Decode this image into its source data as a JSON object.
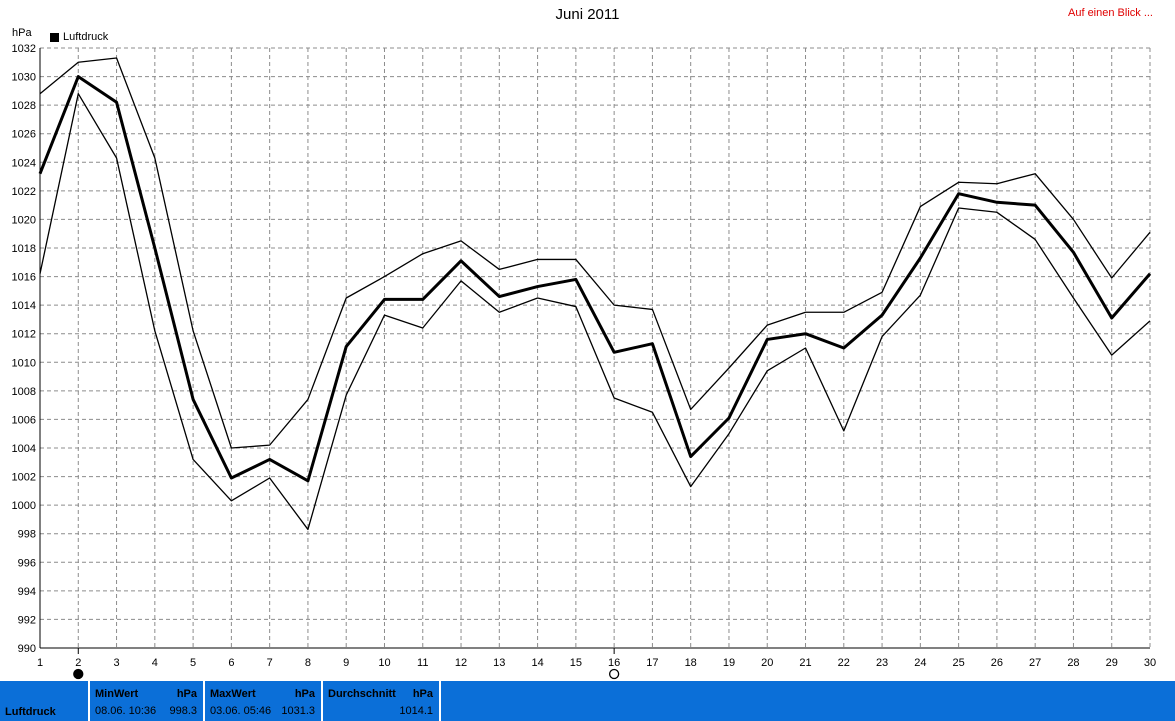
{
  "header": {
    "title": "Juni 2011",
    "overview_link": "Auf einen Blick ..."
  },
  "chart_data": {
    "type": "line",
    "title": "Juni 2011",
    "ylabel": "hPa",
    "xlabel": "",
    "legend": [
      "Luftdruck"
    ],
    "legend_position": "top-left",
    "grid": true,
    "xlim": [
      1,
      30
    ],
    "ylim": [
      990,
      1032
    ],
    "y_ticks": [
      990,
      992,
      994,
      996,
      998,
      1000,
      1002,
      1004,
      1006,
      1008,
      1010,
      1012,
      1014,
      1016,
      1018,
      1020,
      1022,
      1024,
      1026,
      1028,
      1030,
      1032
    ],
    "x": [
      1,
      2,
      3,
      4,
      5,
      6,
      7,
      8,
      9,
      10,
      11,
      12,
      13,
      14,
      15,
      16,
      17,
      18,
      19,
      20,
      21,
      22,
      23,
      24,
      25,
      26,
      27,
      28,
      29,
      30
    ],
    "series": [
      {
        "name": "Luftdruck",
        "role": "max",
        "color": "#000000",
        "values": [
          1028.8,
          1031.0,
          1031.3,
          1024.3,
          1012.2,
          1004.0,
          1004.2,
          1007.4,
          1014.5,
          1016.0,
          1017.6,
          1018.5,
          1016.5,
          1017.2,
          1017.2,
          1014.0,
          1013.7,
          1006.7,
          1009.6,
          1012.6,
          1013.5,
          1013.5,
          1014.9,
          1020.9,
          1022.6,
          1022.5,
          1023.2,
          1020.0,
          1015.9,
          1019.1
        ]
      },
      {
        "name": "Luftdruck",
        "role": "mean",
        "color": "#000000",
        "values": [
          1023.2,
          1030.0,
          1028.2,
          1018.0,
          1007.4,
          1001.9,
          1003.2,
          1001.7,
          1011.1,
          1014.4,
          1014.4,
          1017.1,
          1014.6,
          1015.3,
          1015.8,
          1010.7,
          1011.3,
          1003.4,
          1006.1,
          1011.6,
          1012.0,
          1011.0,
          1013.3,
          1017.3,
          1021.8,
          1021.2,
          1021.0,
          1017.7,
          1013.1,
          1016.2
        ]
      },
      {
        "name": "Luftdruck",
        "role": "min",
        "color": "#000000",
        "values": [
          1016.2,
          1028.8,
          1024.3,
          1012.2,
          1003.2,
          1000.3,
          1001.9,
          998.3,
          1007.7,
          1013.3,
          1012.4,
          1015.7,
          1013.5,
          1014.5,
          1013.9,
          1007.5,
          1006.5,
          1001.3,
          1005.0,
          1009.4,
          1011.0,
          1005.2,
          1011.8,
          1014.7,
          1020.8,
          1020.5,
          1018.6,
          1014.5,
          1010.5,
          1012.9
        ]
      }
    ],
    "markers": [
      {
        "x": 2,
        "kind": "filled"
      },
      {
        "x": 16,
        "kind": "hollow"
      }
    ]
  },
  "footer": {
    "label": "Luftdruck",
    "min_heading": "MinWert",
    "min_unit": "hPa",
    "min_date": "08.06. 10:36",
    "min_value": "998.3",
    "max_heading": "MaxWert",
    "max_unit": "hPa",
    "max_date": "03.06. 05:46",
    "max_value": "1031.3",
    "avg_heading": "Durchschnitt",
    "avg_unit": "hPa",
    "avg_value": "1014.1"
  }
}
